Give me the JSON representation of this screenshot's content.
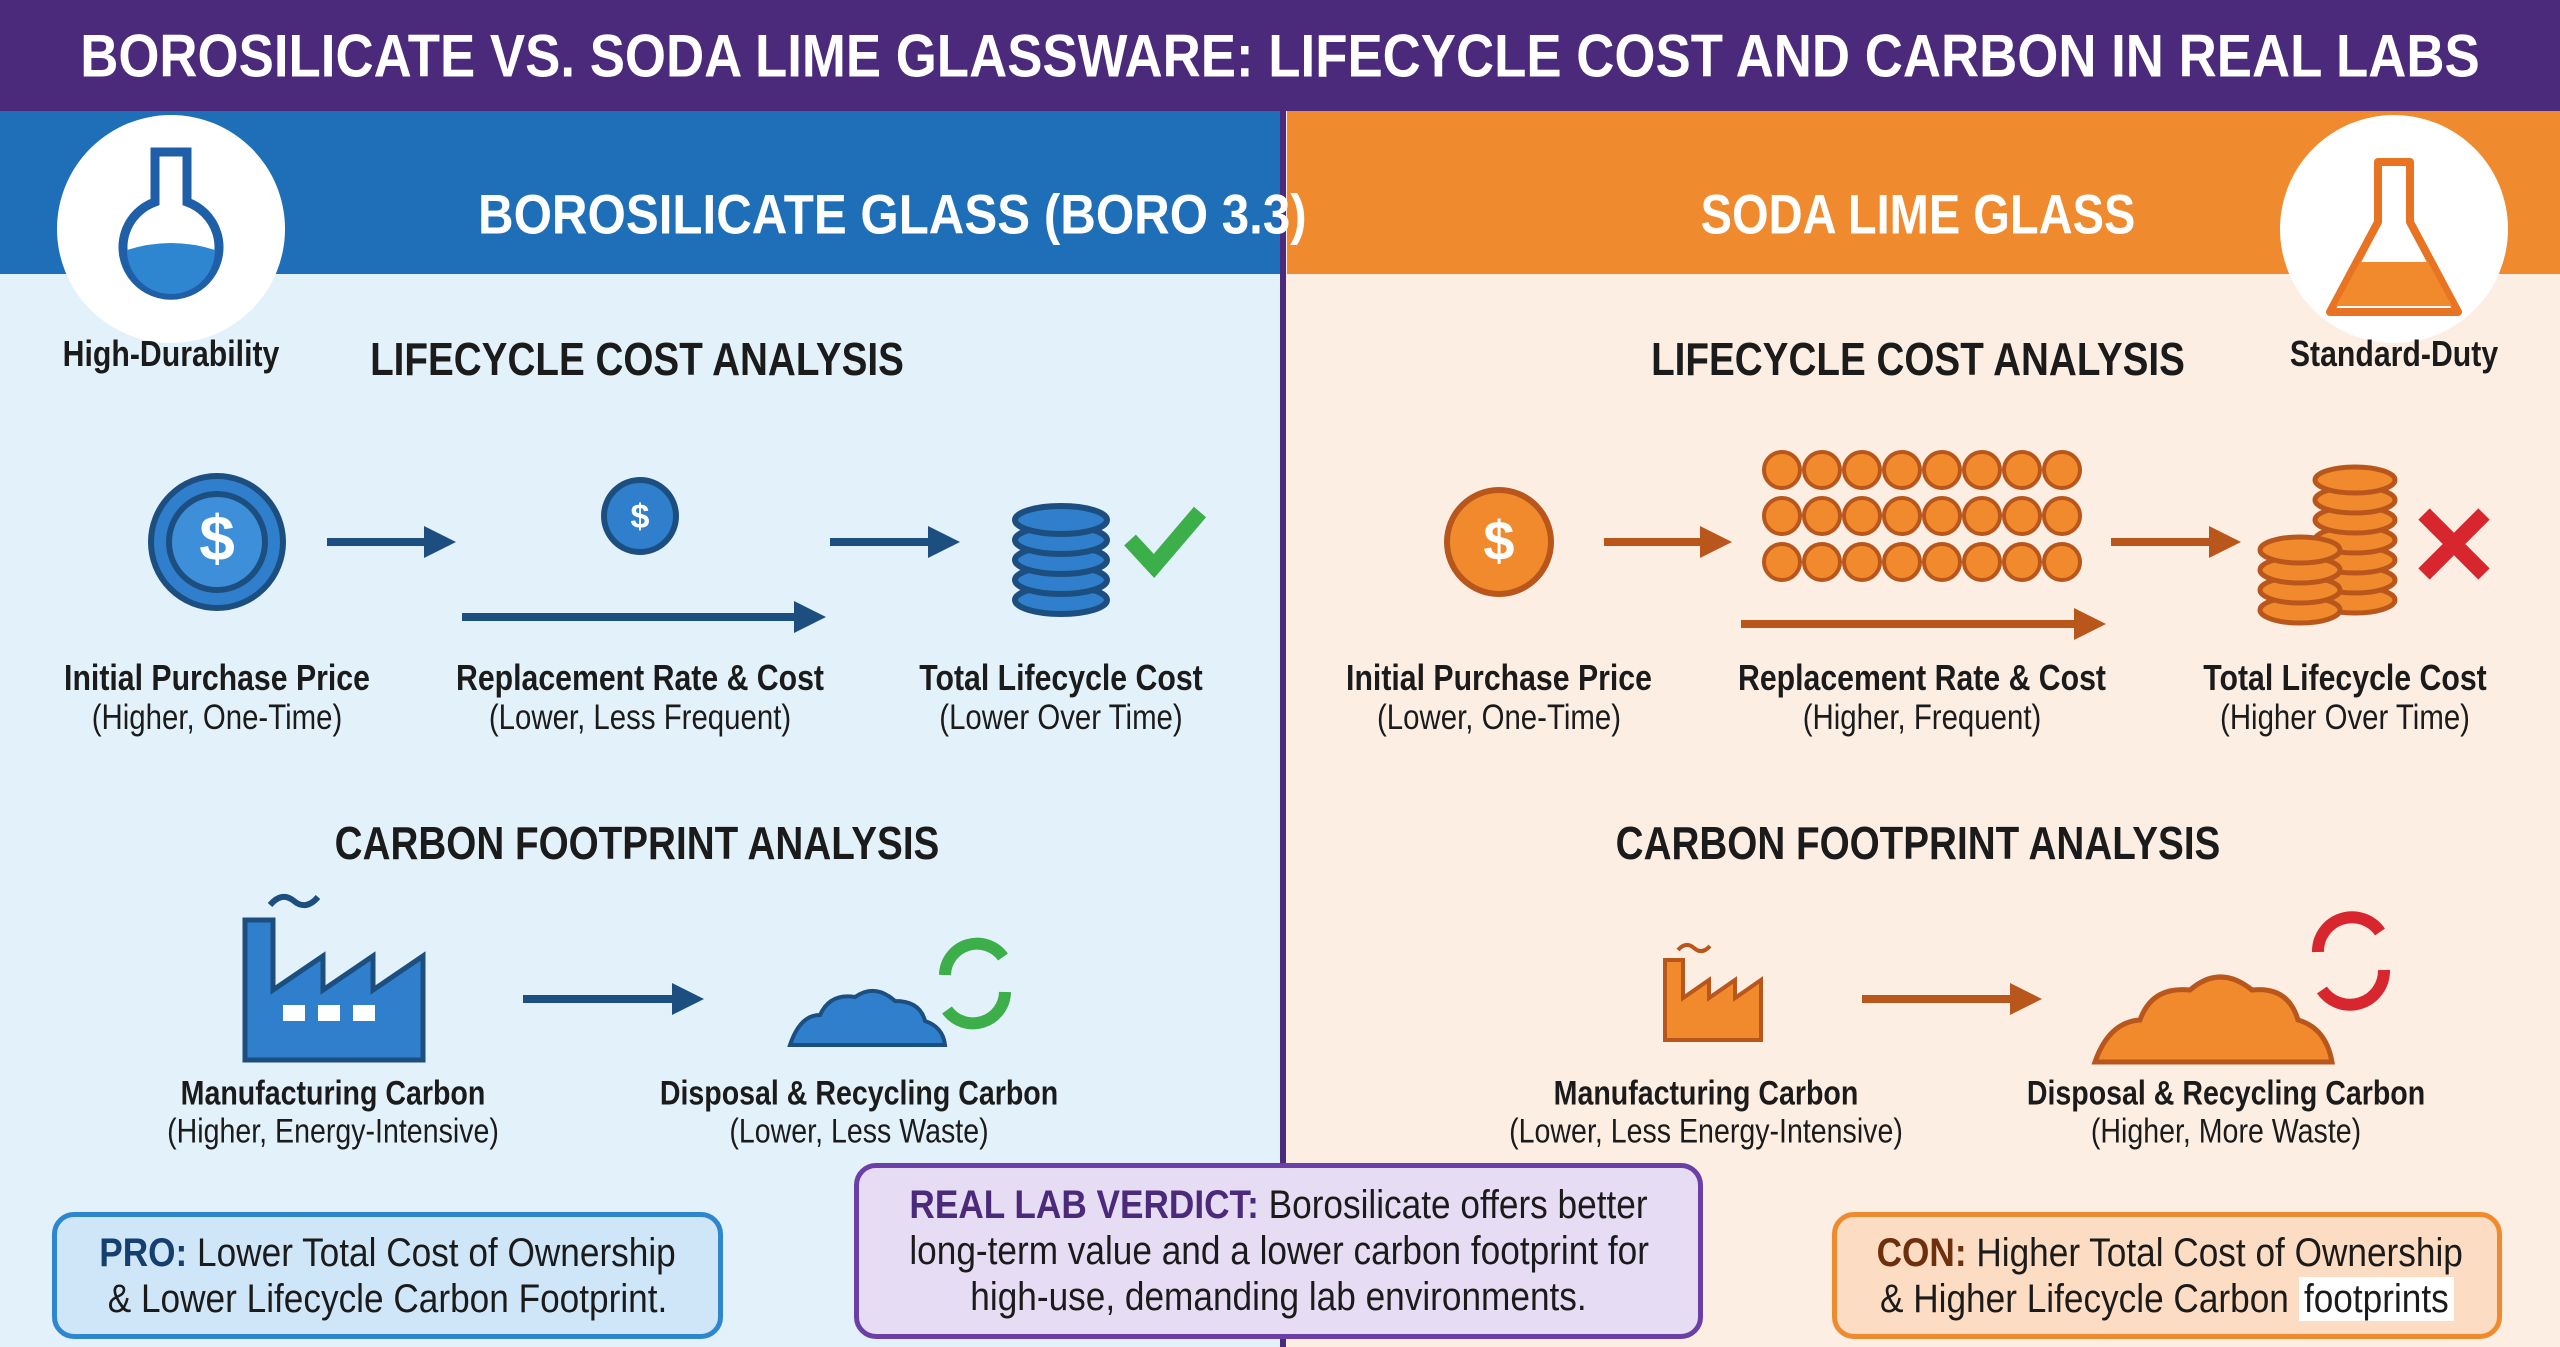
{
  "title": "BOROSILICATE VS. SODA LIME GLASSWARE: LIFECYCLE COST AND CARBON IN REAL LABS",
  "panels": [
    {
      "header": "BOROSILICATE GLASS (BORO 3.3)",
      "badge": "High-Durability",
      "cost": {
        "heading": "LIFECYCLE COST ANALYSIS",
        "items": [
          {
            "label": "Initial Purchase Price",
            "note": "(Higher, One-Time)"
          },
          {
            "label": "Replacement Rate & Cost",
            "note": "(Lower, Less Frequent)"
          },
          {
            "label": "Total Lifecycle Cost",
            "note": "(Lower Over Time)"
          }
        ]
      },
      "carbon": {
        "heading": "CARBON FOOTPRINT ANALYSIS",
        "items": [
          {
            "label": "Manufacturing Carbon",
            "note": "(Higher, Energy-Intensive)"
          },
          {
            "label": "Disposal & Recycling Carbon",
            "note": "(Lower, Less Waste)"
          }
        ]
      },
      "summary": {
        "lead": "PRO:",
        "lines": [
          "Lower Total Cost of Ownership",
          "& Lower Lifecycle Carbon Footprint."
        ]
      }
    },
    {
      "header": "SODA LIME GLASS",
      "badge": "Standard-Duty",
      "cost": {
        "heading": "LIFECYCLE COST ANALYSIS",
        "items": [
          {
            "label": "Initial Purchase Price",
            "note": "(Lower, One-Time)"
          },
          {
            "label": "Replacement Rate & Cost",
            "note": "(Higher, Frequent)"
          },
          {
            "label": "Total Lifecycle Cost",
            "note": "(Higher Over Time)"
          }
        ]
      },
      "carbon": {
        "heading": "CARBON FOOTPRINT ANALYSIS",
        "items": [
          {
            "label": "Manufacturing Carbon",
            "note": "(Lower, Less Energy-Intensive)"
          },
          {
            "label": "Disposal & Recycling Carbon",
            "note": "(Higher, More Waste)"
          }
        ]
      },
      "summary": {
        "lead": "CON:",
        "lines": [
          "Higher Total Cost of Ownership",
          "& Higher Lifecycle Carbon"
        ],
        "highlight": "footprints"
      }
    }
  ],
  "verdict": {
    "lead": "REAL LAB VERDICT:",
    "lines": [
      "Borosilicate offers better",
      "long-term value and a lower carbon footprint for",
      "high-use, demanding lab environments."
    ]
  }
}
